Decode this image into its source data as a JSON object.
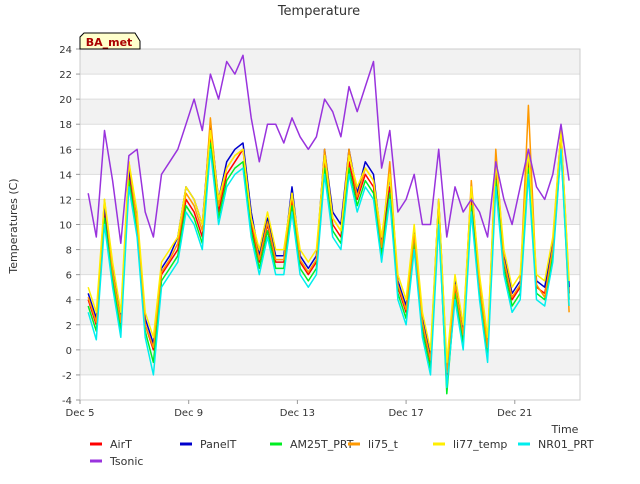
{
  "chart_data": {
    "type": "line",
    "title": "Temperature",
    "xlabel": "Time",
    "ylabel": "Temperatures (C)",
    "badge": "BA_met",
    "ylim": [
      -4,
      24
    ],
    "yticks": [
      -4,
      -2,
      0,
      2,
      4,
      6,
      8,
      10,
      12,
      14,
      16,
      18,
      20,
      22,
      24
    ],
    "xlim": [
      5,
      23.4
    ],
    "xticks": [
      {
        "x": 5,
        "label": "Dec 5"
      },
      {
        "x": 9,
        "label": "Dec 9"
      },
      {
        "x": 13,
        "label": "Dec 13"
      },
      {
        "x": 17,
        "label": "Dec 17"
      },
      {
        "x": 21,
        "label": "Dec 21"
      }
    ],
    "grid": true,
    "legend_position": "bottom",
    "x": [
      5.3,
      5.6,
      5.9,
      6.2,
      6.5,
      6.8,
      7.1,
      7.4,
      7.7,
      8.0,
      8.3,
      8.6,
      8.9,
      9.2,
      9.5,
      9.8,
      10.1,
      10.4,
      10.7,
      11.0,
      11.3,
      11.6,
      11.9,
      12.2,
      12.5,
      12.8,
      13.1,
      13.4,
      13.7,
      14.0,
      14.3,
      14.6,
      14.9,
      15.2,
      15.5,
      15.8,
      16.1,
      16.4,
      16.7,
      17.0,
      17.3,
      17.6,
      17.9,
      18.2,
      18.5,
      18.8,
      19.1,
      19.4,
      19.7,
      20.0,
      20.3,
      20.6,
      20.9,
      21.2,
      21.5,
      21.8,
      22.1,
      22.4,
      22.7,
      23.0
    ],
    "series": [
      {
        "name": "AirT",
        "color": "#ff0000",
        "values": [
          4.0,
          2.0,
          11.0,
          6.0,
          2.0,
          14.0,
          10.0,
          2.0,
          0.0,
          6.0,
          7.0,
          8.0,
          12.0,
          11.0,
          9.0,
          17.0,
          11.0,
          14.0,
          15.0,
          16.0,
          10.0,
          7.0,
          10.0,
          7.0,
          7.0,
          12.0,
          7.0,
          6.0,
          7.0,
          15.0,
          10.0,
          9.0,
          15.0,
          12.0,
          14.0,
          13.0,
          8.0,
          13.0,
          5.0,
          3.0,
          9.0,
          2.0,
          -1.0,
          11.0,
          -2.0,
          5.0,
          1.0,
          12.0,
          5.0,
          0.0,
          14.0,
          7.0,
          4.0,
          5.0,
          15.0,
          5.0,
          4.5,
          8.0,
          17.0,
          4.5
        ]
      },
      {
        "name": "PanelT",
        "color": "#0000cc",
        "values": [
          4.5,
          2.5,
          11.5,
          6.5,
          2.5,
          14.5,
          10.5,
          2.5,
          0.5,
          6.5,
          7.5,
          9.0,
          13.0,
          12.0,
          10.0,
          18.0,
          12.0,
          15.0,
          16.0,
          16.5,
          11.0,
          7.5,
          10.5,
          7.5,
          7.5,
          13.0,
          7.5,
          6.5,
          7.5,
          16.0,
          11.0,
          10.0,
          16.0,
          12.5,
          15.0,
          14.0,
          8.5,
          14.0,
          5.5,
          3.5,
          9.5,
          2.5,
          -0.5,
          12.0,
          -1.5,
          5.5,
          1.5,
          13.0,
          5.5,
          0.5,
          15.0,
          7.5,
          4.5,
          5.5,
          16.0,
          5.5,
          5.0,
          8.5,
          17.5,
          5.0
        ]
      },
      {
        "name": "AM25T_PRT",
        "color": "#00ee22",
        "values": [
          3.5,
          1.5,
          10.5,
          5.5,
          1.5,
          13.5,
          9.5,
          1.5,
          -1.0,
          5.5,
          6.5,
          7.5,
          11.5,
          10.5,
          8.5,
          16.5,
          10.5,
          13.5,
          14.5,
          15.0,
          9.5,
          6.5,
          9.5,
          6.5,
          6.5,
          11.5,
          6.5,
          5.5,
          6.5,
          14.5,
          9.5,
          8.5,
          14.5,
          11.5,
          13.5,
          12.5,
          7.5,
          12.5,
          4.5,
          2.5,
          8.5,
          1.5,
          -1.5,
          10.5,
          -3.5,
          4.5,
          0.5,
          11.5,
          4.5,
          -0.5,
          13.5,
          6.5,
          3.5,
          4.5,
          14.5,
          4.5,
          4.0,
          7.5,
          16.0,
          4.0
        ]
      },
      {
        "name": "li75_t",
        "color": "#ff9900",
        "values": [
          4.2,
          2.2,
          12.0,
          6.2,
          2.2,
          15.0,
          10.0,
          2.0,
          0.2,
          6.2,
          7.2,
          8.5,
          12.5,
          11.5,
          9.5,
          18.5,
          11.5,
          14.5,
          15.5,
          16.0,
          10.5,
          7.2,
          10.2,
          7.2,
          7.2,
          12.5,
          7.2,
          6.2,
          7.2,
          16.0,
          10.5,
          9.5,
          16.0,
          12.2,
          14.5,
          13.5,
          8.2,
          15.0,
          5.2,
          3.2,
          9.2,
          2.2,
          -0.8,
          12.0,
          -1.8,
          5.2,
          1.2,
          13.5,
          5.2,
          0.2,
          16.0,
          7.2,
          4.2,
          5.2,
          19.5,
          5.2,
          4.2,
          8.2,
          17.0,
          3.0
        ]
      },
      {
        "name": "li77_temp",
        "color": "#ffee00",
        "values": [
          5.0,
          3.0,
          12.0,
          7.0,
          3.0,
          15.0,
          11.0,
          3.0,
          1.0,
          7.0,
          8.0,
          9.0,
          13.0,
          12.0,
          10.0,
          17.5,
          12.0,
          14.5,
          15.5,
          16.0,
          10.5,
          8.0,
          11.0,
          8.0,
          8.0,
          12.5,
          8.0,
          7.0,
          8.0,
          15.5,
          10.5,
          9.5,
          15.5,
          13.0,
          14.5,
          13.5,
          9.0,
          14.0,
          6.0,
          4.0,
          10.0,
          3.0,
          0.0,
          12.0,
          -1.0,
          6.0,
          2.0,
          13.0,
          6.0,
          1.0,
          15.0,
          8.0,
          5.0,
          6.0,
          16.0,
          6.0,
          5.5,
          9.0,
          17.5,
          5.5
        ]
      },
      {
        "name": "NR01_PRT",
        "color": "#00eeee",
        "values": [
          3.0,
          0.8,
          10.0,
          5.0,
          1.0,
          13.0,
          9.0,
          1.0,
          -2.0,
          5.0,
          6.0,
          7.0,
          11.0,
          10.0,
          8.0,
          16.0,
          10.0,
          13.0,
          14.0,
          14.5,
          9.0,
          6.0,
          9.0,
          6.0,
          6.0,
          11.0,
          6.0,
          5.0,
          6.0,
          14.0,
          9.0,
          8.0,
          14.0,
          11.0,
          13.0,
          12.0,
          7.0,
          12.0,
          4.0,
          2.0,
          8.0,
          1.0,
          -2.0,
          10.0,
          -3.0,
          4.0,
          0.0,
          11.0,
          4.0,
          -1.0,
          13.0,
          6.0,
          3.0,
          4.0,
          14.0,
          4.0,
          3.5,
          7.0,
          16.0,
          3.5
        ]
      },
      {
        "name": "Tsonic",
        "color": "#9933dd",
        "values": [
          12.5,
          9.0,
          17.5,
          13.5,
          8.5,
          15.5,
          16.0,
          11.0,
          9.0,
          14.0,
          15.0,
          16.0,
          18.0,
          20.0,
          17.5,
          22.0,
          20.0,
          23.0,
          22.0,
          23.5,
          18.5,
          15.0,
          18.0,
          18.0,
          16.5,
          18.5,
          17.0,
          16.0,
          17.0,
          20.0,
          19.0,
          17.0,
          21.0,
          19.0,
          21.0,
          23.0,
          14.5,
          17.5,
          11.0,
          12.0,
          14.0,
          10.0,
          10.0,
          16.0,
          9.0,
          13.0,
          11.0,
          12.0,
          11.0,
          9.0,
          15.0,
          12.0,
          10.0,
          13.0,
          16.0,
          13.0,
          12.0,
          14.0,
          18.0,
          13.5
        ]
      }
    ]
  }
}
